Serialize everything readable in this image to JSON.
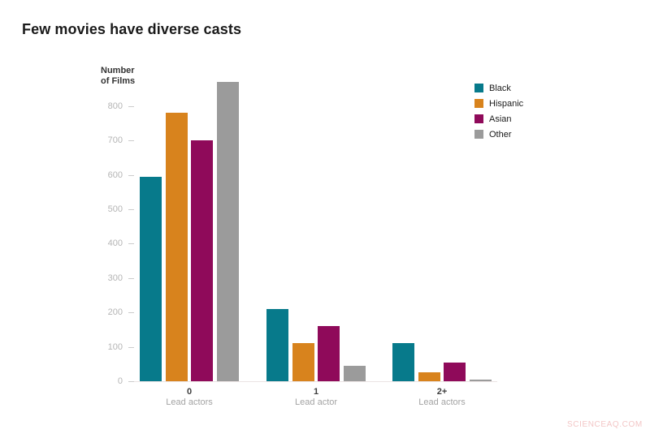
{
  "title": "Few movies have diverse casts",
  "watermark": "SCIENCEAQ.COM",
  "y_axis_title_line1": "Number",
  "y_axis_title_line2": "of Films",
  "colors": {
    "black_series": "#077a8b",
    "hispanic_series": "#d8831d",
    "asian_series": "#8f0a5a",
    "other_series": "#9b9b9b"
  },
  "chart_data": {
    "type": "bar",
    "title": "Few movies have diverse casts",
    "xlabel": "",
    "ylabel": "Number of Films",
    "categories": [
      "0",
      "1",
      "2+"
    ],
    "category_sublabels": [
      "Lead actors",
      "Lead actor",
      "Lead actors"
    ],
    "series": [
      {
        "name": "Black",
        "color": "#077a8b",
        "values": [
          595,
          210,
          110
        ]
      },
      {
        "name": "Hispanic",
        "color": "#d8831d",
        "values": [
          780,
          110,
          25
        ]
      },
      {
        "name": "Asian",
        "color": "#8f0a5a",
        "values": [
          700,
          160,
          55
        ]
      },
      {
        "name": "Other",
        "color": "#9b9b9b",
        "values": [
          870,
          45,
          5
        ]
      }
    ],
    "ylim": [
      0,
      900
    ],
    "yticks": [
      0,
      100,
      200,
      300,
      400,
      500,
      600,
      700,
      800
    ],
    "grid": false,
    "legend_position": "top-right"
  }
}
